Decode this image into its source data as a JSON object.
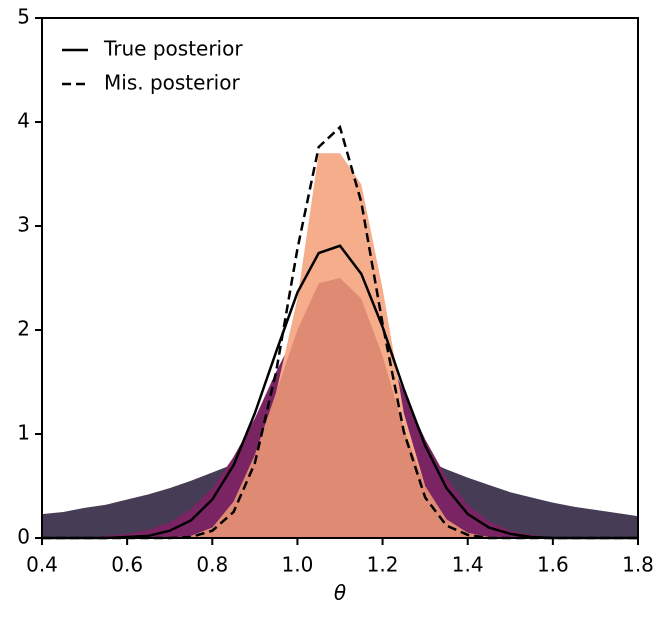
{
  "chart_data": {
    "type": "area",
    "x_label": "θ",
    "x": [
      0.4,
      0.45,
      0.5,
      0.55,
      0.6,
      0.65,
      0.7,
      0.75,
      0.8,
      0.85,
      0.9,
      0.95,
      1.0,
      1.05,
      1.1,
      1.15,
      1.2,
      1.25,
      1.3,
      1.35,
      1.4,
      1.45,
      1.5,
      1.55,
      1.6,
      1.65,
      1.7,
      1.75,
      1.8
    ],
    "series": [
      {
        "style": "fill",
        "color": "#463c55",
        "values": [
          0.23,
          0.25,
          0.29,
          0.32,
          0.37,
          0.42,
          0.48,
          0.55,
          0.63,
          0.71,
          0.8,
          0.88,
          0.95,
          0.99,
          1.0,
          0.97,
          0.91,
          0.83,
          0.75,
          0.66,
          0.58,
          0.51,
          0.44,
          0.39,
          0.34,
          0.3,
          0.27,
          0.24,
          0.21
        ]
      },
      {
        "style": "fill",
        "color": "#7b2463",
        "values": [
          0,
          0,
          0,
          0.02,
          0.04,
          0.08,
          0.15,
          0.28,
          0.48,
          0.78,
          1.15,
          1.6,
          2.0,
          2.3,
          2.4,
          2.25,
          1.9,
          1.4,
          0.95,
          0.58,
          0.32,
          0.16,
          0.07,
          0.03,
          0.01,
          0,
          0,
          0,
          0
        ]
      },
      {
        "style": "fill",
        "color": "#f5ad8c",
        "values": [
          0,
          0,
          0,
          0,
          0,
          0,
          0,
          0.02,
          0.1,
          0.3,
          0.7,
          1.4,
          2.3,
          3.7,
          3.7,
          3.4,
          2.4,
          1.2,
          0.5,
          0.15,
          0.04,
          0,
          0,
          0,
          0,
          0,
          0,
          0,
          0
        ]
      },
      {
        "style": "fill",
        "color": "#df8a73",
        "values": [
          0,
          0,
          0,
          0,
          0,
          0,
          0,
          0.02,
          0.1,
          0.35,
          0.8,
          1.4,
          2.0,
          2.45,
          2.5,
          2.3,
          1.75,
          1.05,
          0.5,
          0.18,
          0.05,
          0.01,
          0,
          0,
          0,
          0,
          0,
          0,
          0
        ]
      },
      {
        "name": "True posterior",
        "style": "line",
        "dash": false,
        "color": "#000000",
        "values": [
          0,
          0,
          0,
          0,
          0.01,
          0.02,
          0.07,
          0.17,
          0.37,
          0.7,
          1.2,
          1.79,
          2.36,
          2.74,
          2.81,
          2.54,
          2.03,
          1.43,
          0.89,
          0.48,
          0.23,
          0.1,
          0.04,
          0.01,
          0,
          0,
          0,
          0,
          0
        ]
      },
      {
        "name": "Mis. posterior",
        "style": "line",
        "dash": true,
        "color": "#000000",
        "values": [
          0,
          0,
          0,
          0,
          0,
          0,
          0,
          0.01,
          0.07,
          0.25,
          0.72,
          1.6,
          2.78,
          3.76,
          3.95,
          3.23,
          2.06,
          1.02,
          0.39,
          0.12,
          0.03,
          0,
          0,
          0,
          0,
          0,
          0,
          0,
          0
        ]
      }
    ],
    "xlim": [
      0.4,
      1.8
    ],
    "xticks": [
      0.4,
      0.6,
      0.8,
      {
        "value": 1,
        "label": "1.0"
      },
      1.2,
      1.4,
      1.6,
      1.8
    ],
    "ylim": [
      0,
      5
    ],
    "yticks": [
      0,
      1,
      2,
      3,
      4,
      5
    ],
    "legend": "upper left"
  }
}
